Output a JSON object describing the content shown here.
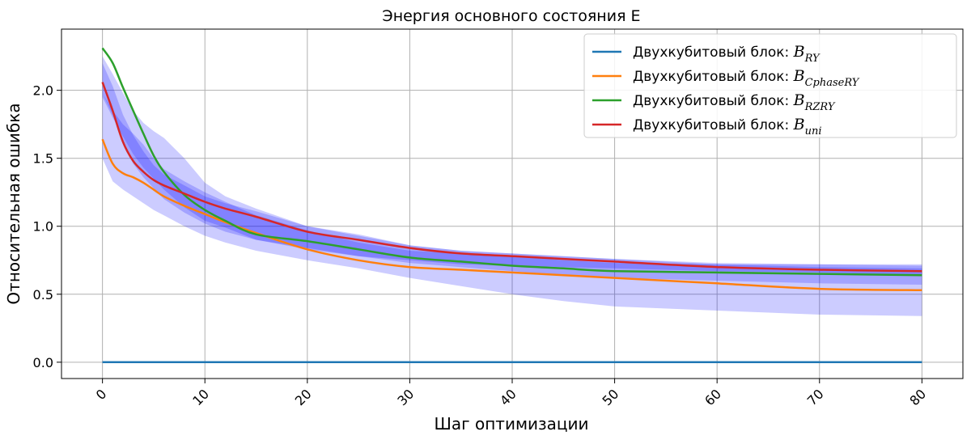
{
  "chart_data": {
    "type": "line",
    "title": "Энергия основного состояния E",
    "xlabel": "Шаг оптимизации",
    "ylabel": "Относительная ошибка",
    "xlim": [
      -4,
      84
    ],
    "ylim": [
      -0.12,
      2.45
    ],
    "xticks": [
      0,
      10,
      20,
      30,
      40,
      50,
      60,
      70,
      80
    ],
    "yticks": [
      0.0,
      0.5,
      1.0,
      1.5,
      2.0
    ],
    "ytick_labels": [
      "0.0",
      "0.5",
      "1.0",
      "1.5",
      "2.0"
    ],
    "grid": true,
    "legend_position": "top-right",
    "x": [
      0,
      1,
      2,
      3,
      4,
      5,
      6,
      8,
      10,
      12,
      15,
      20,
      25,
      30,
      35,
      40,
      45,
      50,
      60,
      70,
      80
    ],
    "series": [
      {
        "name": "Двухкубитовый блок: ",
        "math_base": "B",
        "math_sub": "RY",
        "color": "#1f77b4",
        "values": [
          0.0,
          0.0,
          0.0,
          0.0,
          0.0,
          0.0,
          0.0,
          0.0,
          0.0,
          0.0,
          0.0,
          0.0,
          0.0,
          0.0,
          0.0,
          0.0,
          0.0,
          0.0,
          0.0,
          0.0,
          0.0
        ]
      },
      {
        "name": "Двухкубитовый блок: ",
        "math_base": "B",
        "math_sub": "CphaseRY",
        "color": "#ff7f0e",
        "values": [
          1.64,
          1.46,
          1.39,
          1.36,
          1.32,
          1.27,
          1.22,
          1.15,
          1.09,
          1.03,
          0.95,
          0.83,
          0.75,
          0.7,
          0.68,
          0.66,
          0.64,
          0.62,
          0.58,
          0.54,
          0.53
        ]
      },
      {
        "name": "Двухкубитовый блок: ",
        "math_base": "B",
        "math_sub": "RZRY",
        "color": "#2ca02c",
        "values": [
          2.31,
          2.2,
          2.02,
          1.85,
          1.68,
          1.52,
          1.4,
          1.23,
          1.12,
          1.04,
          0.94,
          0.89,
          0.83,
          0.77,
          0.74,
          0.71,
          0.69,
          0.67,
          0.66,
          0.65,
          0.64
        ]
      },
      {
        "name": "Двухкубитовый блок: ",
        "math_base": "B",
        "math_sub": "uni",
        "color": "#d62728",
        "values": [
          2.06,
          1.85,
          1.62,
          1.48,
          1.4,
          1.34,
          1.3,
          1.24,
          1.18,
          1.13,
          1.07,
          0.96,
          0.9,
          0.84,
          0.8,
          0.78,
          0.76,
          0.74,
          0.7,
          0.68,
          0.67
        ]
      }
    ],
    "uncertainty_bands": {
      "color": "#0000ff",
      "opacity": 0.2,
      "bands": [
        {
          "upper": [
            1.98,
            1.85,
            1.75,
            1.68,
            1.6,
            1.5,
            1.42,
            1.33,
            1.25,
            1.18,
            1.08,
            0.97,
            0.88,
            0.82,
            0.8,
            0.78,
            0.75,
            0.73,
            0.72,
            0.72,
            0.72
          ],
          "lower": [
            1.5,
            1.33,
            1.27,
            1.22,
            1.17,
            1.12,
            1.08,
            1.0,
            0.93,
            0.88,
            0.82,
            0.75,
            0.69,
            0.62,
            0.56,
            0.5,
            0.45,
            0.41,
            0.38,
            0.35,
            0.34
          ]
        },
        {
          "upper": [
            2.25,
            2.12,
            1.98,
            1.85,
            1.76,
            1.7,
            1.65,
            1.5,
            1.32,
            1.22,
            1.13,
            1.0,
            0.94,
            0.86,
            0.82,
            0.8,
            0.78,
            0.76,
            0.73,
            0.72,
            0.71
          ],
          "lower": [
            1.95,
            1.8,
            1.66,
            1.53,
            1.43,
            1.35,
            1.27,
            1.14,
            1.04,
            0.99,
            0.9,
            0.84,
            0.78,
            0.73,
            0.7,
            0.67,
            0.64,
            0.62,
            0.6,
            0.58,
            0.57
          ]
        },
        {
          "upper": [
            2.2,
            2.03,
            1.82,
            1.67,
            1.55,
            1.45,
            1.38,
            1.3,
            1.22,
            1.17,
            1.11,
            1.0,
            0.93,
            0.86,
            0.82,
            0.8,
            0.78,
            0.76,
            0.72,
            0.7,
            0.69
          ],
          "lower": [
            1.98,
            1.82,
            1.6,
            1.46,
            1.36,
            1.28,
            1.2,
            1.1,
            1.02,
            0.96,
            0.9,
            0.83,
            0.78,
            0.75,
            0.72,
            0.71,
            0.7,
            0.69,
            0.67,
            0.66,
            0.64
          ]
        }
      ]
    }
  }
}
